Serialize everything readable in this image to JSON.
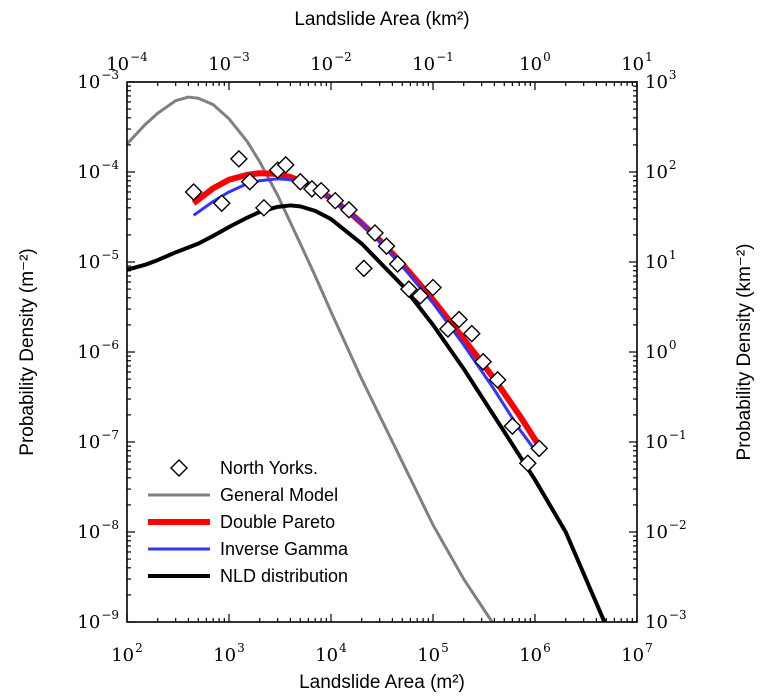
{
  "chart_data": {
    "type": "line",
    "xlabel_bottom": "Landslide Area (m²)",
    "xlabel_top": "Landslide Area (km²)",
    "ylabel_left": "Probability Density (m⁻²)",
    "ylabel_right": "Probability Density (km⁻²)",
    "x_scale": "log",
    "y_scale": "log",
    "xlim": [
      100,
      10000000
    ],
    "ylim": [
      1e-09,
      0.001
    ],
    "xlim_top": [
      0.0001,
      10
    ],
    "ylim_right": [
      0.001,
      1000
    ],
    "grid": false,
    "legend_position": "lower-left",
    "tick_labels": {
      "bottom": [
        {
          "base": "10",
          "exp": "2"
        },
        {
          "base": "10",
          "exp": "3"
        },
        {
          "base": "10",
          "exp": "4"
        },
        {
          "base": "10",
          "exp": "5"
        },
        {
          "base": "10",
          "exp": "6"
        },
        {
          "base": "10",
          "exp": "7"
        }
      ],
      "top": [
        {
          "base": "10",
          "exp": "−4"
        },
        {
          "base": "10",
          "exp": "−3"
        },
        {
          "base": "10",
          "exp": "−2"
        },
        {
          "base": "10",
          "exp": "−1"
        },
        {
          "base": "10",
          "exp": "0"
        },
        {
          "base": "10",
          "exp": "1"
        }
      ],
      "left": [
        {
          "base": "10",
          "exp": "−3"
        },
        {
          "base": "10",
          "exp": "−4"
        },
        {
          "base": "10",
          "exp": "−5"
        },
        {
          "base": "10",
          "exp": "−6"
        },
        {
          "base": "10",
          "exp": "−7"
        },
        {
          "base": "10",
          "exp": "−8"
        },
        {
          "base": "10",
          "exp": "−9"
        }
      ],
      "right": [
        {
          "base": "10",
          "exp": "3"
        },
        {
          "base": "10",
          "exp": "2"
        },
        {
          "base": "10",
          "exp": "1"
        },
        {
          "base": "10",
          "exp": "0"
        },
        {
          "base": "10",
          "exp": "−1"
        },
        {
          "base": "10",
          "exp": "−2"
        },
        {
          "base": "10",
          "exp": "−3"
        }
      ]
    },
    "series": [
      {
        "name": "North Yorks.",
        "kind": "scatter",
        "marker": "diamond",
        "color": "#000000",
        "points": [
          [
            450,
            6e-05
          ],
          [
            850,
            4.5e-05
          ],
          [
            1250,
            0.00014
          ],
          [
            1600,
            7.8e-05
          ],
          [
            2200,
            4e-05
          ],
          [
            3000,
            0.000105
          ],
          [
            3600,
            0.00012
          ],
          [
            5000,
            7.8e-05
          ],
          [
            6500,
            6.5e-05
          ],
          [
            8000,
            6.2e-05
          ],
          [
            11000,
            4.8e-05
          ],
          [
            15000,
            3.8e-05
          ],
          [
            21000,
            8.5e-06
          ],
          [
            27000,
            2.1e-05
          ],
          [
            35000,
            1.5e-05
          ],
          [
            45000,
            9.5e-06
          ],
          [
            58000,
            5e-06
          ],
          [
            75000,
            4.2e-06
          ],
          [
            100000,
            5.2e-06
          ],
          [
            140000,
            1.8e-06
          ],
          [
            180000,
            2.3e-06
          ],
          [
            240000,
            1.6e-06
          ],
          [
            310000,
            7.8e-07
          ],
          [
            430000,
            4.9e-07
          ],
          [
            600000,
            1.5e-07
          ],
          [
            850000,
            5.8e-08
          ],
          [
            1100000,
            8.5e-08
          ]
        ]
      },
      {
        "name": "General Model",
        "kind": "line",
        "color": "#808080",
        "points": [
          [
            100,
            0.000205
          ],
          [
            150,
            0.000335
          ],
          [
            200,
            0.00045
          ],
          [
            300,
            0.00062
          ],
          [
            400,
            0.00068
          ],
          [
            500,
            0.00066
          ],
          [
            700,
            0.00056
          ],
          [
            1000,
            0.00039
          ],
          [
            1500,
            0.00022
          ],
          [
            2000,
            0.00013
          ],
          [
            3000,
            5.5e-05
          ],
          [
            5000,
            1.6e-05
          ],
          [
            7000,
            7e-06
          ],
          [
            10000,
            2.8e-06
          ],
          [
            20000,
            5e-07
          ],
          [
            50000,
            6e-08
          ],
          [
            100000,
            1.2e-08
          ],
          [
            200000,
            3e-09
          ],
          [
            380000,
            1e-09
          ]
        ]
      },
      {
        "name": "Double Pareto",
        "kind": "line",
        "color": "#ff0000",
        "points": [
          [
            450,
            4.5e-05
          ],
          [
            700,
            6.6e-05
          ],
          [
            1000,
            8.2e-05
          ],
          [
            1500,
            9.3e-05
          ],
          [
            2000,
            9.7e-05
          ],
          [
            3000,
            9.5e-05
          ],
          [
            4000,
            8.8e-05
          ],
          [
            6000,
            7.3e-05
          ],
          [
            10000,
            5.1e-05
          ],
          [
            15000,
            3.6e-05
          ],
          [
            20000,
            2.7e-05
          ],
          [
            30000,
            1.75e-05
          ],
          [
            50000,
            9.5e-06
          ],
          [
            100000,
            3.8e-06
          ],
          [
            200000,
            1.4e-06
          ],
          [
            400000,
            5e-07
          ],
          [
            700000,
            2e-07
          ],
          [
            1100000,
            9e-08
          ]
        ]
      },
      {
        "name": "Inverse Gamma",
        "kind": "line",
        "color": "#3333ff",
        "points": [
          [
            450,
            3.3e-05
          ],
          [
            700,
            4.7e-05
          ],
          [
            1000,
            6e-05
          ],
          [
            1500,
            7.4e-05
          ],
          [
            2000,
            8e-05
          ],
          [
            3000,
            8.4e-05
          ],
          [
            4000,
            8.2e-05
          ],
          [
            6000,
            7.2e-05
          ],
          [
            10000,
            5.1e-05
          ],
          [
            15000,
            3.6e-05
          ],
          [
            20000,
            2.7e-05
          ],
          [
            30000,
            1.7e-05
          ],
          [
            50000,
            9e-06
          ],
          [
            100000,
            3.5e-06
          ],
          [
            200000,
            1.2e-06
          ],
          [
            400000,
            3.8e-07
          ],
          [
            700000,
            1.4e-07
          ],
          [
            1100000,
            7e-08
          ]
        ]
      },
      {
        "name": "NLD distribution",
        "kind": "line",
        "color": "#000000",
        "points": [
          [
            100,
            8.2e-06
          ],
          [
            150,
            9.3e-06
          ],
          [
            200,
            1.05e-05
          ],
          [
            300,
            1.28e-05
          ],
          [
            500,
            1.6e-05
          ],
          [
            700,
            1.95e-05
          ],
          [
            1000,
            2.45e-05
          ],
          [
            1500,
            3.1e-05
          ],
          [
            2000,
            3.6e-05
          ],
          [
            3000,
            4.1e-05
          ],
          [
            4000,
            4.25e-05
          ],
          [
            5000,
            4.15e-05
          ],
          [
            7000,
            3.7e-05
          ],
          [
            10000,
            3e-05
          ],
          [
            20000,
            1.6e-05
          ],
          [
            50000,
            5.5e-06
          ],
          [
            100000,
            2e-06
          ],
          [
            200000,
            6.5e-07
          ],
          [
            500000,
            1.3e-07
          ],
          [
            1000000,
            3.8e-08
          ],
          [
            2000000,
            1e-08
          ],
          [
            4800000,
            1e-09
          ]
        ]
      }
    ]
  }
}
